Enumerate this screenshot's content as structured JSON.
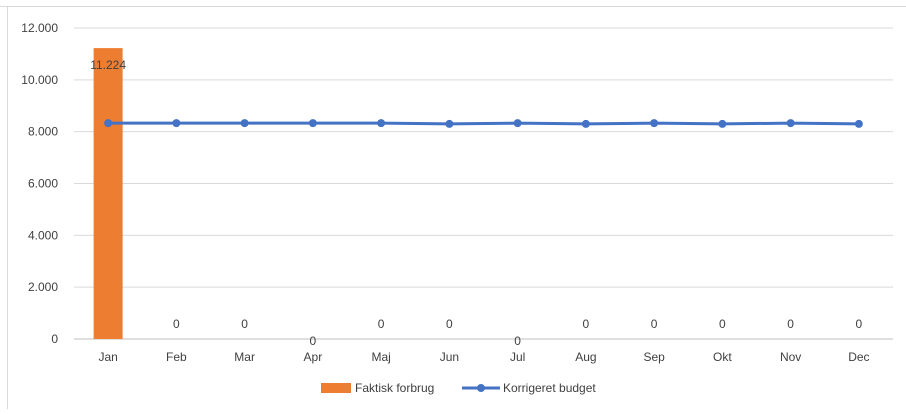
{
  "chart_data": {
    "type": "bar",
    "categories": [
      "Jan",
      "Feb",
      "Mar",
      "Apr",
      "Maj",
      "Jun",
      "Jul",
      "Aug",
      "Sep",
      "Okt",
      "Nov",
      "Dec"
    ],
    "series": [
      {
        "name": "Faktisk forbrug",
        "type": "bar",
        "color": "#ed7d31",
        "values": [
          11224,
          0,
          0,
          0,
          0,
          0,
          0,
          0,
          0,
          0,
          0,
          0
        ],
        "labels": [
          "11.224",
          "0",
          "0",
          "0",
          "0",
          "0",
          "0",
          "0",
          "0",
          "0",
          "0",
          "0"
        ]
      },
      {
        "name": "Korrigeret budget",
        "type": "line",
        "color": "#4472c4",
        "values": [
          8330,
          8330,
          8330,
          8330,
          8330,
          8300,
          8330,
          8300,
          8330,
          8300,
          8330,
          8300
        ]
      }
    ],
    "y_ticks": [
      0,
      2000,
      4000,
      6000,
      8000,
      10000,
      12000
    ],
    "y_tick_labels": [
      "0",
      "2.000",
      "4.000",
      "6.000",
      "8.000",
      "10.000",
      "12.000"
    ],
    "ylim": [
      0,
      12000
    ],
    "grid": true,
    "legend_position": "bottom",
    "title": "",
    "xlabel": "",
    "ylabel": ""
  }
}
